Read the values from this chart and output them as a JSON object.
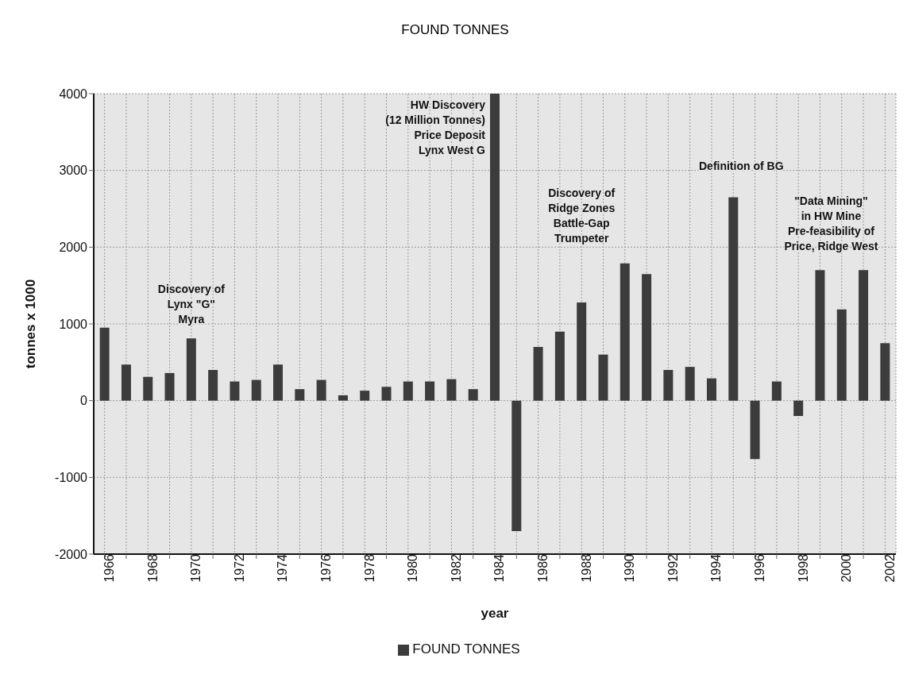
{
  "chart_data": {
    "type": "bar",
    "title": "FOUND TONNES",
    "xlabel": "year",
    "ylabel": "tonnes x 1000",
    "categories": [
      "1966",
      null,
      "1968",
      null,
      "1970",
      null,
      "1972",
      null,
      "1974",
      null,
      "1976",
      null,
      "1978",
      null,
      "1980",
      null,
      "1982",
      null,
      "1984",
      null,
      "1986",
      null,
      "1988",
      null,
      "1990",
      null,
      "1992",
      null,
      "1994",
      null,
      "1996",
      null,
      "1998",
      null,
      "2000",
      null,
      "2002"
    ],
    "series": [
      {
        "name": "FOUND TONNES",
        "color": "#3c3c3c",
        "values": [
          950,
          470,
          310,
          360,
          810,
          400,
          250,
          270,
          470,
          150,
          270,
          70,
          130,
          180,
          250,
          250,
          280,
          150,
          4000,
          -1700,
          700,
          900,
          1280,
          600,
          1790,
          1650,
          400,
          440,
          290,
          2650,
          -760,
          250,
          -200,
          1700,
          1190,
          1700,
          750
        ]
      }
    ],
    "ylim": [
      -2000,
      4000
    ],
    "yticks": [
      -2000,
      -1000,
      0,
      1000,
      2000,
      3000,
      4000
    ],
    "grid": true,
    "legend": "bottom",
    "annotations": [
      "Discovery of\nLynx \"G\"\nMyra",
      "HW Discovery\n(12 Million Tonnes)\nPrice Deposit\nLynx West G",
      "Discovery of\nRidge Zones\nBattle-Gap\nTrumpeter",
      "Definition of BG",
      "\"Data Mining\"\nin HW Mine\nPre-feasibility of\nPrice, Ridge West"
    ]
  }
}
